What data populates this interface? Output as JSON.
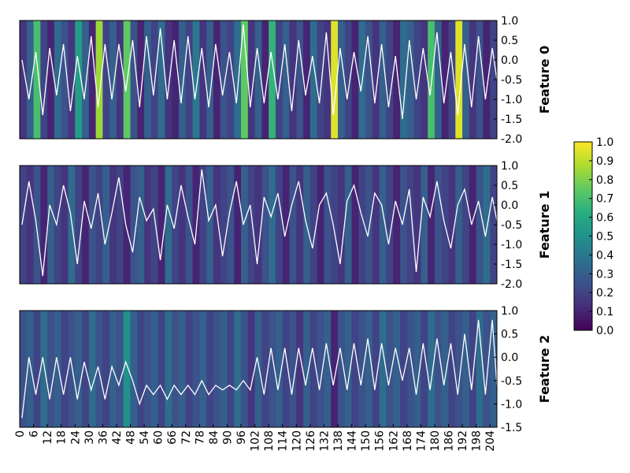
{
  "chart_data": [
    {
      "type": "heatmap",
      "title": "Feature 0",
      "ylim": [
        -2.0,
        1.0
      ],
      "yticks": [
        "1.0",
        "0.5",
        "0.0",
        "-0.5",
        "-1.0",
        "-1.5",
        "-2.0"
      ],
      "x_step": 3,
      "heat": [
        0.15,
        0.3,
        0.7,
        0.2,
        0.1,
        0.35,
        0.25,
        0.15,
        0.55,
        0.3,
        0.1,
        0.85,
        0.2,
        0.3,
        0.15,
        0.75,
        0.25,
        0.1,
        0.3,
        0.2,
        0.35,
        0.15,
        0.1,
        0.3,
        0.2,
        0.4,
        0.15,
        0.3,
        0.1,
        0.25,
        0.2,
        0.35,
        0.75,
        0.15,
        0.3,
        0.1,
        0.65,
        0.2,
        0.3,
        0.15,
        0.25,
        0.1,
        0.35,
        0.2,
        0.15,
        0.95,
        0.3,
        0.2,
        0.1,
        0.35,
        0.25,
        0.15,
        0.3,
        0.2,
        0.1,
        0.35,
        0.3,
        0.2,
        0.15,
        0.7,
        0.3,
        0.1,
        0.2,
        0.95,
        0.3,
        0.15,
        0.25,
        0.1,
        0.2,
        0.35
      ],
      "line": [
        0.0,
        -1.0,
        0.2,
        -1.4,
        0.3,
        -0.9,
        0.4,
        -1.3,
        0.1,
        -1.0,
        0.6,
        -1.2,
        0.4,
        -1.0,
        0.4,
        -0.8,
        0.5,
        -1.2,
        0.6,
        -0.9,
        0.8,
        -1.0,
        0.5,
        -1.1,
        0.6,
        -1.0,
        0.3,
        -1.2,
        0.4,
        -0.9,
        0.2,
        -1.1,
        0.9,
        -1.2,
        0.3,
        -1.1,
        0.2,
        -1.0,
        0.4,
        -1.3,
        0.5,
        -0.9,
        0.1,
        -1.1,
        0.7,
        -1.4,
        0.3,
        -1.0,
        0.2,
        -0.8,
        0.6,
        -1.1,
        0.4,
        -1.2,
        0.1,
        -1.5,
        0.5,
        -1.0,
        0.3,
        -0.9,
        0.7,
        -1.1,
        0.2,
        -1.4,
        0.4,
        -1.2,
        0.6,
        -1.0,
        0.3,
        -0.5
      ]
    },
    {
      "type": "heatmap",
      "title": "Feature 1",
      "ylim": [
        -2.0,
        1.0
      ],
      "yticks": [
        "1.0",
        "0.5",
        "0.0",
        "-0.5",
        "-1.0",
        "-1.5",
        "-2.0"
      ],
      "x_step": 3,
      "heat": [
        0.2,
        0.15,
        0.25,
        0.1,
        0.3,
        0.2,
        0.15,
        0.35,
        0.2,
        0.1,
        0.25,
        0.2,
        0.3,
        0.15,
        0.2,
        0.1,
        0.25,
        0.3,
        0.15,
        0.2,
        0.1,
        0.35,
        0.2,
        0.15,
        0.25,
        0.1,
        0.2,
        0.3,
        0.15,
        0.2,
        0.25,
        0.1,
        0.3,
        0.2,
        0.15,
        0.25,
        0.35,
        0.2,
        0.1,
        0.25,
        0.15,
        0.3,
        0.2,
        0.1,
        0.25,
        0.2,
        0.15,
        0.3,
        0.1,
        0.2,
        0.25,
        0.15,
        0.3,
        0.2,
        0.1,
        0.25,
        0.2,
        0.15,
        0.3,
        0.1,
        0.25,
        0.2,
        0.15,
        0.3,
        0.2,
        0.1,
        0.25,
        0.35,
        0.2,
        0.15
      ],
      "line": [
        -0.5,
        0.6,
        -0.4,
        -1.8,
        0.0,
        -0.5,
        0.5,
        -0.2,
        -1.5,
        0.1,
        -0.6,
        0.3,
        -1.0,
        -0.2,
        0.7,
        -0.5,
        -1.2,
        0.2,
        -0.4,
        -0.1,
        -1.4,
        0.0,
        -0.6,
        0.5,
        -0.3,
        -1.0,
        0.9,
        -0.4,
        0.0,
        -1.3,
        -0.2,
        0.6,
        -0.5,
        0.0,
        -1.5,
        0.2,
        -0.3,
        0.3,
        -0.8,
        0.0,
        0.6,
        -0.4,
        -1.1,
        0.0,
        0.3,
        -0.5,
        -1.5,
        0.1,
        0.5,
        -0.2,
        -0.8,
        0.3,
        0.0,
        -1.0,
        0.1,
        -0.5,
        0.4,
        -1.7,
        0.2,
        -0.3,
        0.6,
        -0.4,
        -1.1,
        0.0,
        0.4,
        -0.5,
        0.1,
        -0.8,
        0.2,
        -0.4
      ]
    },
    {
      "type": "heatmap",
      "title": "Feature 2",
      "ylim": [
        -1.5,
        1.0
      ],
      "yticks": [
        "1.0",
        "0.5",
        "0.0",
        "-0.5",
        "-1.0",
        "-1.5"
      ],
      "x_step": 3,
      "heat": [
        0.25,
        0.3,
        0.2,
        0.35,
        0.25,
        0.3,
        0.2,
        0.25,
        0.3,
        0.2,
        0.35,
        0.25,
        0.2,
        0.3,
        0.25,
        0.5,
        0.3,
        0.2,
        0.25,
        0.3,
        0.2,
        0.35,
        0.25,
        0.3,
        0.2,
        0.25,
        0.3,
        0.2,
        0.25,
        0.3,
        0.2,
        0.35,
        0.25,
        0.15,
        0.3,
        0.2,
        0.25,
        0.3,
        0.2,
        0.25,
        0.15,
        0.3,
        0.2,
        0.25,
        0.3,
        0.1,
        0.25,
        0.3,
        0.2,
        0.25,
        0.3,
        0.2,
        0.35,
        0.25,
        0.3,
        0.2,
        0.25,
        0.3,
        0.2,
        0.35,
        0.25,
        0.3,
        0.2,
        0.25,
        0.3,
        0.2,
        0.35,
        0.25,
        0.3,
        0.2
      ],
      "line": [
        -1.3,
        0.0,
        -0.8,
        0.0,
        -0.9,
        0.0,
        -0.8,
        0.0,
        -0.9,
        -0.1,
        -0.7,
        -0.2,
        -0.9,
        -0.2,
        -0.6,
        -0.1,
        -0.5,
        -1.0,
        -0.6,
        -0.8,
        -0.6,
        -0.9,
        -0.6,
        -0.8,
        -0.6,
        -0.8,
        -0.5,
        -0.8,
        -0.6,
        -0.7,
        -0.6,
        -0.7,
        -0.5,
        -0.7,
        0.0,
        -0.8,
        0.2,
        -0.7,
        0.2,
        -0.8,
        0.2,
        -0.6,
        0.2,
        -0.7,
        0.3,
        -0.6,
        0.2,
        -0.7,
        0.3,
        -0.6,
        0.4,
        -0.7,
        0.3,
        -0.6,
        0.2,
        -0.5,
        0.2,
        -0.8,
        0.3,
        -0.7,
        0.4,
        -0.6,
        0.3,
        -0.8,
        0.5,
        -0.7,
        0.8,
        -0.8,
        0.8,
        -0.6
      ]
    }
  ],
  "xlim": [
    0,
    207
  ],
  "xticks": [
    "0",
    "6",
    "12",
    "18",
    "24",
    "30",
    "36",
    "42",
    "48",
    "54",
    "60",
    "66",
    "72",
    "78",
    "84",
    "90",
    "96",
    "102",
    "108",
    "114",
    "120",
    "126",
    "132",
    "138",
    "144",
    "150",
    "156",
    "162",
    "168",
    "174",
    "180",
    "186",
    "192",
    "198",
    "204"
  ],
  "colorbar": {
    "range": [
      0,
      1
    ],
    "ticks": [
      "1.0",
      "0.9",
      "0.8",
      "0.7",
      "0.6",
      "0.5",
      "0.4",
      "0.3",
      "0.2",
      "0.1",
      "0.0"
    ],
    "colormap": "viridis"
  },
  "colors": {
    "line": "#ffffff",
    "frame": "#000000"
  }
}
